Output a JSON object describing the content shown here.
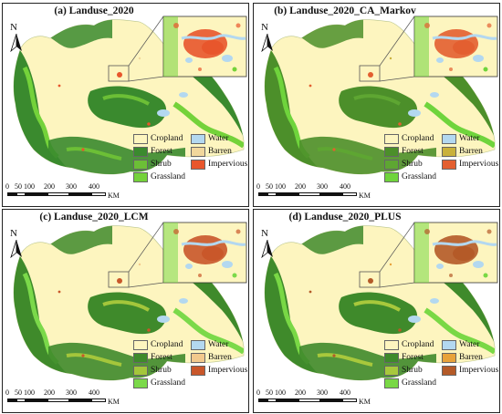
{
  "north_label": "N",
  "panels": [
    {
      "title": "(a) Landuse_2020",
      "legend": [
        {
          "label": "Cropland",
          "color": "#fdf5bf"
        },
        {
          "label": "Water",
          "color": "#b3d8f0"
        },
        {
          "label": "Forest",
          "color": "#3a8a2e"
        },
        {
          "label": "Barren",
          "color": "#f1d79c"
        },
        {
          "label": "Shrub",
          "color": "#6cbf36"
        },
        {
          "label": "Impervious",
          "color": "#e8562c"
        },
        {
          "label": "Grassland",
          "color": "#74d23a"
        }
      ]
    },
    {
      "title": "(b) Landuse_2020_CA_Markov",
      "legend": [
        {
          "label": "Cropland",
          "color": "#fdf5bf"
        },
        {
          "label": "Water",
          "color": "#b3d8f0"
        },
        {
          "label": "Forest",
          "color": "#4c8f2a"
        },
        {
          "label": "Barren",
          "color": "#c9b13a"
        },
        {
          "label": "Shrub",
          "color": "#5ea632"
        },
        {
          "label": "Impervious",
          "color": "#e35f30"
        },
        {
          "label": "Grassland",
          "color": "#6fd43c"
        }
      ]
    },
    {
      "title": "(c) Landuse_2020_LCM",
      "legend": [
        {
          "label": "Cropland",
          "color": "#fdf5bf"
        },
        {
          "label": "Water",
          "color": "#b3d8f0"
        },
        {
          "label": "Forest",
          "color": "#3f8a2b"
        },
        {
          "label": "Barren",
          "color": "#f2c98d"
        },
        {
          "label": "Shrub",
          "color": "#a4c63b"
        },
        {
          "label": "Impervious",
          "color": "#c9572a"
        },
        {
          "label": "Grassland",
          "color": "#7bd94a"
        }
      ]
    },
    {
      "title": "(d) Landuse_2020_PLUS",
      "legend": [
        {
          "label": "Cropland",
          "color": "#fdf5bf"
        },
        {
          "label": "Water",
          "color": "#b3d8f0"
        },
        {
          "label": "Forest",
          "color": "#3f8a2b"
        },
        {
          "label": "Barren",
          "color": "#e8a23a"
        },
        {
          "label": "Shrub",
          "color": "#a8c83c"
        },
        {
          "label": "Impervious",
          "color": "#b45a28"
        },
        {
          "label": "Grassland",
          "color": "#79d845"
        }
      ]
    }
  ],
  "scale_bar": {
    "ticks": [
      "0",
      "50",
      "100",
      "200",
      "300",
      "400"
    ],
    "unit": "KM"
  }
}
